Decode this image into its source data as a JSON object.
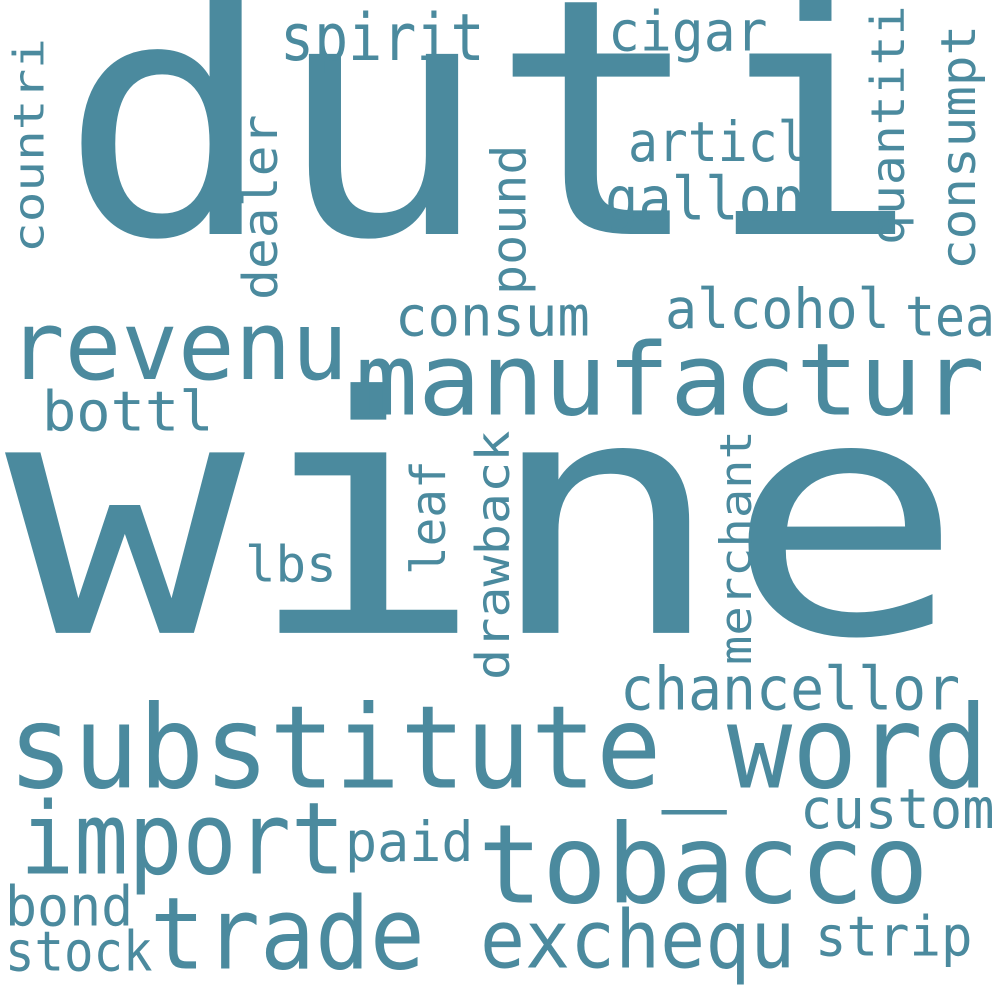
{
  "word_cloud": {
    "color": "#4b8a9e",
    "background": "#ffffff",
    "words": {
      "wine": "wine",
      "duti": "duti",
      "substitute_word": "substitute_word",
      "manufactur": "manufactur",
      "revenu": "revenu",
      "tobacco": "tobacco",
      "import": "import",
      "trade": "trade",
      "exchequ": "exchequ",
      "chancellor": "chancellor",
      "custom": "custom",
      "strip": "strip",
      "stock": "stock",
      "bond": "bond",
      "paid": "paid",
      "spirit": "spirit",
      "cigar": "cigar",
      "articl": "articl",
      "gallon": "gallon",
      "alcohol": "alcohol",
      "consum": "consum",
      "tea": "tea",
      "bottl": "bottl",
      "lbs": "lbs",
      "countri": "countri",
      "dealer": "dealer",
      "pound": "pound",
      "quantiti": "quantiti",
      "consumpt": "consumpt",
      "leaf": "leaf",
      "drawback": "drawback",
      "merchant": "merchant"
    }
  }
}
